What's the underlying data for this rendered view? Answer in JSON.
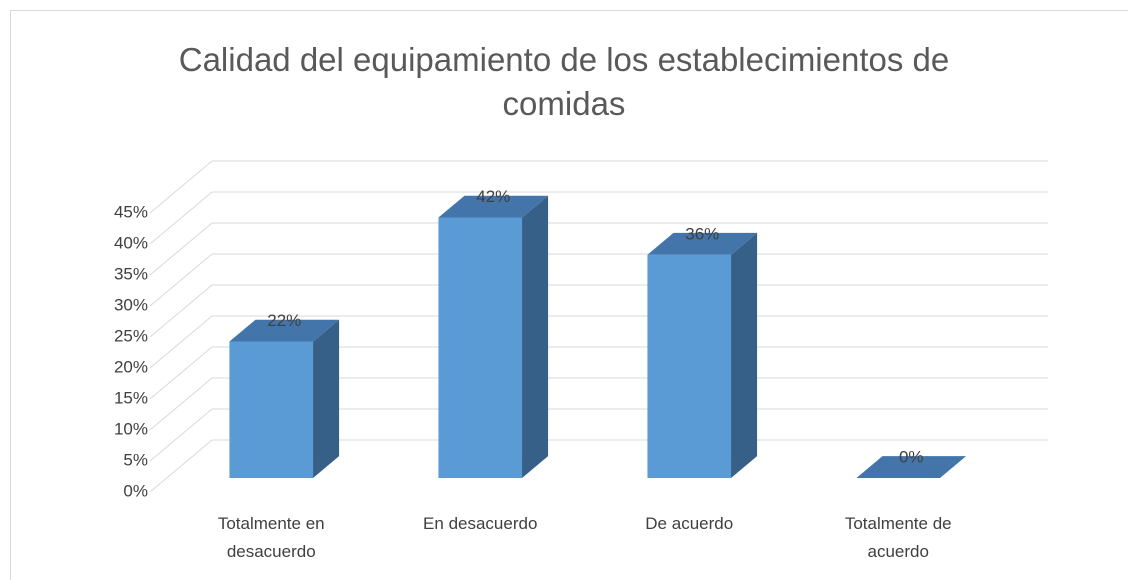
{
  "chart_data": {
    "type": "bar3d",
    "title": "Calidad del equipamiento de los establecimientos de comidas",
    "categories": [
      "Totalmente en desacuerdo",
      "En desacuerdo",
      "De acuerdo",
      "Totalmente de acuerdo"
    ],
    "values": [
      22,
      42,
      36,
      0
    ],
    "value_labels": [
      "22%",
      "42%",
      "36%",
      "0%"
    ],
    "color": "#5b9bd5",
    "ylim": [
      0,
      45
    ],
    "yticks": [
      {
        "value": 0,
        "label": "0%"
      },
      {
        "value": 5,
        "label": "5%"
      },
      {
        "value": 10,
        "label": "10%"
      },
      {
        "value": 15,
        "label": "15%"
      },
      {
        "value": 20,
        "label": "20%"
      },
      {
        "value": 25,
        "label": "25%"
      },
      {
        "value": 30,
        "label": "30%"
      },
      {
        "value": 35,
        "label": "35%"
      },
      {
        "value": 40,
        "label": "40%"
      },
      {
        "value": 45,
        "label": "45%"
      }
    ],
    "grid": true
  }
}
